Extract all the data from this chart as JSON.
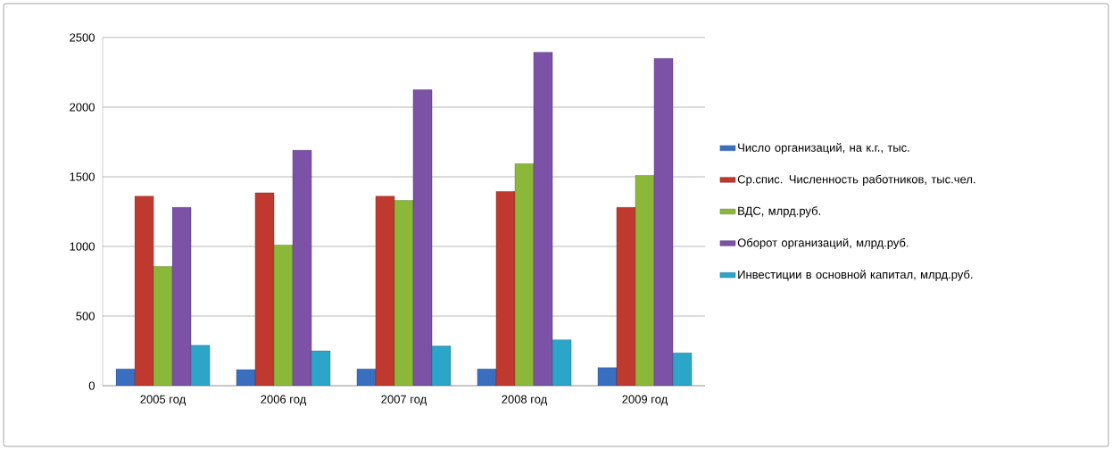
{
  "chart_data": {
    "type": "bar",
    "categories": [
      "2005 год",
      "2006 год",
      "2007 год",
      "2008 год",
      "2009 год"
    ],
    "series": [
      {
        "name": "Число организаций, на к.г., тыс.",
        "color": "#3a6fc0",
        "values": [
          120,
          115,
          120,
          120,
          130
        ]
      },
      {
        "name": "Ср.спис. Численность работников, тыс.чел.",
        "color": "#c0392f",
        "values": [
          1360,
          1385,
          1360,
          1395,
          1280
        ]
      },
      {
        "name": "ВДС, млрд.руб.",
        "color": "#8cb83a",
        "values": [
          855,
          1010,
          1330,
          1595,
          1510
        ]
      },
      {
        "name": "Оборот организаций, млрд.руб.",
        "color": "#7b52a6",
        "values": [
          1280,
          1690,
          2125,
          2395,
          2350
        ]
      },
      {
        "name": "Инвестиции в основной капитал, млрд.руб.",
        "color": "#2ba6c8",
        "values": [
          290,
          250,
          285,
          330,
          235
        ]
      }
    ],
    "ylim": [
      0,
      2500
    ],
    "yticks": [
      0,
      500,
      1000,
      1500,
      2000,
      2500
    ],
    "grid": "y",
    "legend": "right"
  }
}
